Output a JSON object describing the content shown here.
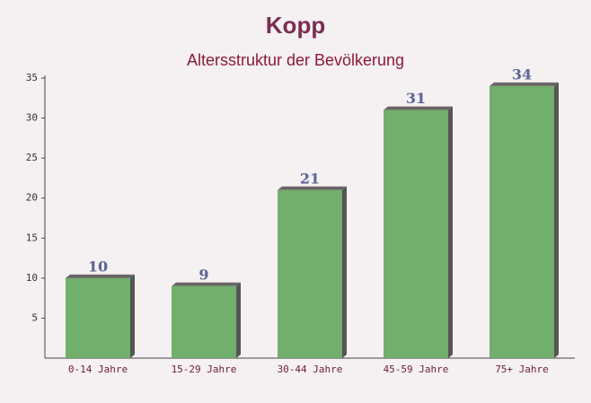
{
  "chart_data": {
    "type": "bar",
    "title": "Kopp",
    "subtitle": "Altersstruktur der Bevölkerung",
    "categories": [
      "0-14 Jahre",
      "15-29 Jahre",
      "30-44 Jahre",
      "45-59 Jahre",
      "75+ Jahre"
    ],
    "values": [
      10,
      9,
      21,
      31,
      34
    ],
    "color": "#6aaa64",
    "ylim": [
      0,
      35
    ],
    "yticks": [
      5,
      10,
      15,
      20,
      25,
      30,
      35
    ],
    "grid": false
  }
}
